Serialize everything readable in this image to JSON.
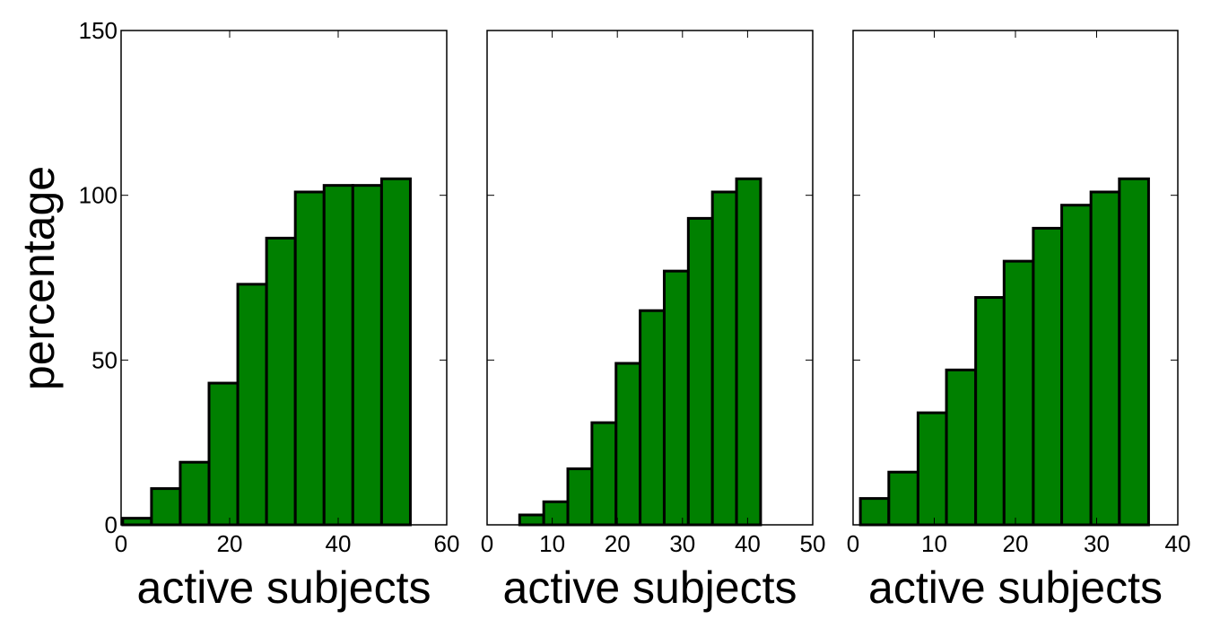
{
  "chart_data": [
    {
      "type": "bar",
      "xlabel": "active subjects",
      "ylabel": "percentage",
      "xlim": [
        0,
        60
      ],
      "ylim": [
        0,
        150
      ],
      "xticks": [
        0,
        20,
        40,
        60
      ],
      "yticks": [
        0,
        50,
        100,
        150
      ],
      "bar_color": "#008000",
      "bins": [
        {
          "x0": 0.3,
          "x1": 5.6,
          "value": 2
        },
        {
          "x0": 5.6,
          "x1": 10.9,
          "value": 11
        },
        {
          "x0": 10.9,
          "x1": 16.2,
          "value": 19
        },
        {
          "x0": 16.2,
          "x1": 21.5,
          "value": 43
        },
        {
          "x0": 21.5,
          "x1": 26.8,
          "value": 73
        },
        {
          "x0": 26.8,
          "x1": 32.1,
          "value": 87
        },
        {
          "x0": 32.1,
          "x1": 37.4,
          "value": 101
        },
        {
          "x0": 37.4,
          "x1": 42.7,
          "value": 103
        },
        {
          "x0": 42.7,
          "x1": 48.0,
          "value": 103
        },
        {
          "x0": 48.0,
          "x1": 53.3,
          "value": 105
        }
      ]
    },
    {
      "type": "bar",
      "xlabel": "active subjects",
      "ylabel": "",
      "xlim": [
        0,
        50
      ],
      "ylim": [
        0,
        150
      ],
      "xticks": [
        0,
        10,
        20,
        30,
        40,
        50
      ],
      "yticks": [],
      "bar_color": "#008000",
      "bins": [
        {
          "x0": 5.0,
          "x1": 8.7,
          "value": 3
        },
        {
          "x0": 8.7,
          "x1": 12.4,
          "value": 7
        },
        {
          "x0": 12.4,
          "x1": 16.1,
          "value": 17
        },
        {
          "x0": 16.1,
          "x1": 19.8,
          "value": 31
        },
        {
          "x0": 19.8,
          "x1": 23.5,
          "value": 49
        },
        {
          "x0": 23.5,
          "x1": 27.2,
          "value": 65
        },
        {
          "x0": 27.2,
          "x1": 30.9,
          "value": 77
        },
        {
          "x0": 30.9,
          "x1": 34.6,
          "value": 93
        },
        {
          "x0": 34.6,
          "x1": 38.3,
          "value": 101
        },
        {
          "x0": 38.3,
          "x1": 42.0,
          "value": 105
        }
      ]
    },
    {
      "type": "bar",
      "xlabel": "active subjects",
      "ylabel": "",
      "xlim": [
        0,
        40
      ],
      "ylim": [
        0,
        150
      ],
      "xticks": [
        0,
        10,
        20,
        30,
        40
      ],
      "yticks": [],
      "bar_color": "#008000",
      "bins": [
        {
          "x0": 0.9,
          "x1": 4.4,
          "value": 8
        },
        {
          "x0": 4.4,
          "x1": 8.0,
          "value": 16
        },
        {
          "x0": 8.0,
          "x1": 11.5,
          "value": 34
        },
        {
          "x0": 11.5,
          "x1": 15.1,
          "value": 47
        },
        {
          "x0": 15.1,
          "x1": 18.6,
          "value": 69
        },
        {
          "x0": 18.6,
          "x1": 22.2,
          "value": 80
        },
        {
          "x0": 22.2,
          "x1": 25.7,
          "value": 90
        },
        {
          "x0": 25.7,
          "x1": 29.3,
          "value": 97
        },
        {
          "x0": 29.3,
          "x1": 32.8,
          "value": 101
        },
        {
          "x0": 32.8,
          "x1": 36.4,
          "value": 105
        }
      ]
    }
  ]
}
